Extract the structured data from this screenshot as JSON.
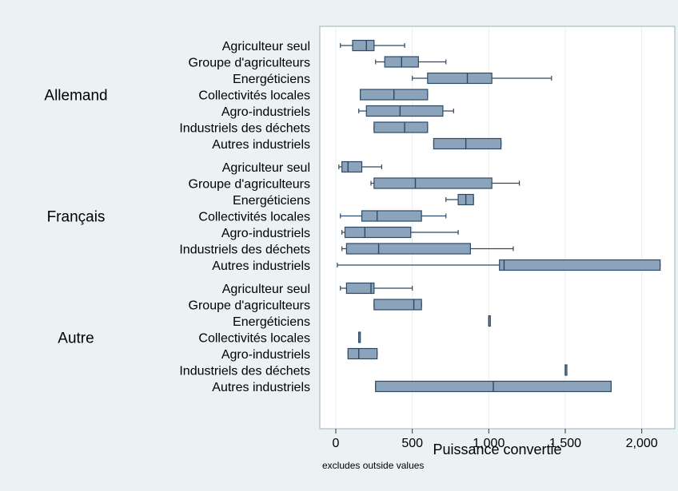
{
  "chart_data": {
    "type": "box",
    "title": "",
    "xlabel": "Puissance convertie",
    "note": "excludes outside values",
    "xlim": [
      -100,
      2250
    ],
    "xticks": [
      0,
      500,
      1000,
      1500,
      2000
    ],
    "xtick_labels": [
      "0",
      "500",
      "1,000",
      "1,500",
      "2,000"
    ],
    "grid": true,
    "groups": [
      {
        "name": "Allemand",
        "boxes": [
          {
            "category": "Agriculteur seul",
            "whisker_low": 30,
            "q1": 110,
            "median": 200,
            "q3": 250,
            "whisker_high": 450
          },
          {
            "category": "Groupe d'agriculteurs",
            "whisker_low": 260,
            "q1": 320,
            "median": 430,
            "q3": 540,
            "whisker_high": 720
          },
          {
            "category": "Energéticiens",
            "whisker_low": 500,
            "q1": 600,
            "median": 860,
            "q3": 1020,
            "whisker_high": 1410
          },
          {
            "category": "Collectivités locales",
            "whisker_low": 160,
            "q1": 160,
            "median": 380,
            "q3": 600,
            "whisker_high": 600
          },
          {
            "category": "Agro-industriels",
            "whisker_low": 150,
            "q1": 200,
            "median": 420,
            "q3": 700,
            "whisker_high": 770
          },
          {
            "category": "Industriels des déchets",
            "whisker_low": 250,
            "q1": 250,
            "median": 450,
            "q3": 600,
            "whisker_high": 600
          },
          {
            "category": "Autres industriels",
            "whisker_low": 640,
            "q1": 640,
            "median": 850,
            "q3": 1080,
            "whisker_high": 1080
          }
        ]
      },
      {
        "name": "Français",
        "boxes": [
          {
            "category": "Agriculteur seul",
            "whisker_low": 20,
            "q1": 40,
            "median": 80,
            "q3": 170,
            "whisker_high": 300
          },
          {
            "category": "Groupe d'agriculteurs",
            "whisker_low": 230,
            "q1": 250,
            "median": 520,
            "q3": 1020,
            "whisker_high": 1200
          },
          {
            "category": "Energéticiens",
            "whisker_low": 720,
            "q1": 800,
            "median": 850,
            "q3": 900,
            "whisker_high": 900
          },
          {
            "category": "Collectivités locales",
            "whisker_low": 30,
            "q1": 170,
            "median": 270,
            "q3": 560,
            "whisker_high": 720
          },
          {
            "category": "Agro-industriels",
            "whisker_low": 40,
            "q1": 60,
            "median": 190,
            "q3": 490,
            "whisker_high": 800
          },
          {
            "category": "Industriels des déchets",
            "whisker_low": 40,
            "q1": 70,
            "median": 280,
            "q3": 880,
            "whisker_high": 1160
          },
          {
            "category": "Autres industriels",
            "whisker_low": 10,
            "q1": 1070,
            "median": 1100,
            "q3": 2120,
            "whisker_high": 2120
          }
        ]
      },
      {
        "name": "Autre",
        "boxes": [
          {
            "category": "Agriculteur seul",
            "whisker_low": 30,
            "q1": 70,
            "median": 230,
            "q3": 250,
            "whisker_high": 500
          },
          {
            "category": "Groupe d'agriculteurs",
            "whisker_low": 250,
            "q1": 250,
            "median": 510,
            "q3": 560,
            "whisker_high": 560
          },
          {
            "category": "Energéticiens",
            "whisker_low": 1000,
            "q1": 1000,
            "median": 1000,
            "q3": 1000,
            "whisker_high": 1000
          },
          {
            "category": "Collectivités locales",
            "whisker_low": 150,
            "q1": 150,
            "median": 150,
            "q3": 150,
            "whisker_high": 150
          },
          {
            "category": "Agro-industriels",
            "whisker_low": 80,
            "q1": 80,
            "median": 150,
            "q3": 270,
            "whisker_high": 270
          },
          {
            "category": "Industriels des déchets",
            "whisker_low": 1500,
            "q1": 1500,
            "median": 1500,
            "q3": 1500,
            "whisker_high": 1500
          },
          {
            "category": "Autres industriels",
            "whisker_low": 260,
            "q1": 260,
            "median": 1030,
            "q3": 1800,
            "whisker_high": 1800
          }
        ]
      }
    ],
    "colors": {
      "background": "#eaf2f3",
      "plot_area": "#ffffff",
      "box_fill": "#8ba3bb",
      "box_stroke": "#2c4a66",
      "whisker": "#2c4a66",
      "grid": "#e6eef0"
    }
  }
}
